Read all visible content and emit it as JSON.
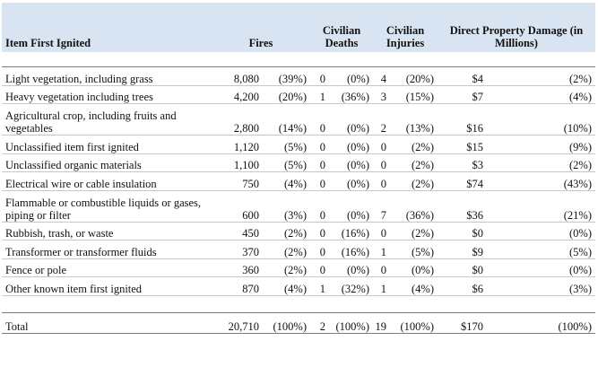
{
  "headers": {
    "item": "Item First Ignited",
    "fires": "Fires",
    "deaths": "Civilian Deaths",
    "injuries": "Civilian Injuries",
    "damage": "Direct Property Damage (in Millions)"
  },
  "rows": [
    {
      "item": "Light vegetation, including grass",
      "fires": "8,080",
      "fires_pct": "(39%)",
      "deaths": "0",
      "deaths_pct": "(0%)",
      "injuries": "4",
      "injuries_pct": "(20%)",
      "damage": "$4",
      "damage_pct": "(2%)"
    },
    {
      "item": "Heavy vegetation including trees",
      "fires": "4,200",
      "fires_pct": "(20%)",
      "deaths": "1",
      "deaths_pct": "(36%)",
      "injuries": "3",
      "injuries_pct": "(15%)",
      "damage": "$7",
      "damage_pct": "(4%)"
    },
    {
      "item": "Agricultural crop, including fruits and vegetables",
      "fires": "2,800",
      "fires_pct": "(14%)",
      "deaths": "0",
      "deaths_pct": "(0%)",
      "injuries": "2",
      "injuries_pct": "(13%)",
      "damage": "$16",
      "damage_pct": "(10%)"
    },
    {
      "item": "Unclassified item first ignited",
      "fires": "1,120",
      "fires_pct": "(5%)",
      "deaths": "0",
      "deaths_pct": "(0%)",
      "injuries": "0",
      "injuries_pct": "(2%)",
      "damage": "$15",
      "damage_pct": "(9%)"
    },
    {
      "item": "Unclassified organic materials",
      "fires": "1,100",
      "fires_pct": "(5%)",
      "deaths": "0",
      "deaths_pct": "(0%)",
      "injuries": "0",
      "injuries_pct": "(2%)",
      "damage": "$3",
      "damage_pct": "(2%)"
    },
    {
      "item": "Electrical wire or cable insulation",
      "fires": "750",
      "fires_pct": "(4%)",
      "deaths": "0",
      "deaths_pct": "(0%)",
      "injuries": "0",
      "injuries_pct": "(2%)",
      "damage": "$74",
      "damage_pct": "(43%)"
    },
    {
      "item": "Flammable or combustible liquids or gases, piping or filter",
      "fires": "600",
      "fires_pct": "(3%)",
      "deaths": "0",
      "deaths_pct": "(0%)",
      "injuries": "7",
      "injuries_pct": "(36%)",
      "damage": "$36",
      "damage_pct": "(21%)"
    },
    {
      "item": "Rubbish, trash, or waste",
      "fires": "450",
      "fires_pct": "(2%)",
      "deaths": "0",
      "deaths_pct": "(16%)",
      "injuries": "0",
      "injuries_pct": "(2%)",
      "damage": "$0",
      "damage_pct": "(0%)"
    },
    {
      "item": "Transformer or transformer fluids",
      "fires": "370",
      "fires_pct": "(2%)",
      "deaths": "0",
      "deaths_pct": "(16%)",
      "injuries": "1",
      "injuries_pct": "(5%)",
      "damage": "$9",
      "damage_pct": "(5%)"
    },
    {
      "item": "Fence or pole",
      "fires": "360",
      "fires_pct": "(2%)",
      "deaths": "0",
      "deaths_pct": "(0%)",
      "injuries": "0",
      "injuries_pct": "(0%)",
      "damage": "$0",
      "damage_pct": "(0%)"
    },
    {
      "item": "Other known item first ignited",
      "fires": "870",
      "fires_pct": "(4%)",
      "deaths": "1",
      "deaths_pct": "(32%)",
      "injuries": "1",
      "injuries_pct": "(4%)",
      "damage": "$6",
      "damage_pct": "(3%)"
    }
  ],
  "total": {
    "item": "Total",
    "fires": "20,710",
    "fires_pct": "(100%)",
    "deaths": "2",
    "deaths_pct": "(100%)",
    "injuries": "19",
    "injuries_pct": "(100%)",
    "damage": "$170",
    "damage_pct": "(100%)"
  }
}
